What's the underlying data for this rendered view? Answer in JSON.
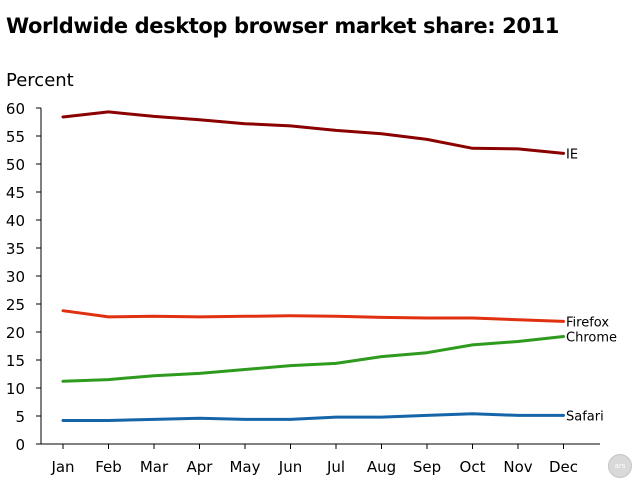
{
  "chart_data": {
    "type": "line",
    "title": "Worldwide desktop browser market share: 2011",
    "ylabel": "Percent",
    "xlabel": "",
    "categories": [
      "Jan",
      "Feb",
      "Mar",
      "Apr",
      "May",
      "Jun",
      "Jul",
      "Aug",
      "Sep",
      "Oct",
      "Nov",
      "Dec"
    ],
    "ylim": [
      0,
      60
    ],
    "yticks": [
      0,
      5,
      10,
      15,
      20,
      25,
      30,
      35,
      40,
      45,
      50,
      55,
      60
    ],
    "grid": false,
    "legend": "labels at line ends (right)",
    "series": [
      {
        "name": "IE",
        "color": "#8b0000",
        "values": [
          58.4,
          59.3,
          58.5,
          57.9,
          57.2,
          56.8,
          56.0,
          55.4,
          54.4,
          52.8,
          52.7,
          51.9
        ]
      },
      {
        "name": "Firefox",
        "color": "#e03010",
        "values": [
          23.8,
          22.7,
          22.8,
          22.7,
          22.8,
          22.9,
          22.8,
          22.6,
          22.5,
          22.5,
          22.2,
          21.9
        ]
      },
      {
        "name": "Chrome",
        "color": "#2e9a1e",
        "values": [
          11.2,
          11.5,
          12.2,
          12.6,
          13.3,
          14.0,
          14.4,
          15.6,
          16.3,
          17.7,
          18.3,
          19.2
        ]
      },
      {
        "name": "Safari",
        "color": "#1565a8",
        "values": [
          4.2,
          4.2,
          4.4,
          4.6,
          4.4,
          4.4,
          4.8,
          4.8,
          5.1,
          5.4,
          5.1,
          5.1
        ]
      }
    ]
  },
  "logo": {
    "text": "ars"
  }
}
